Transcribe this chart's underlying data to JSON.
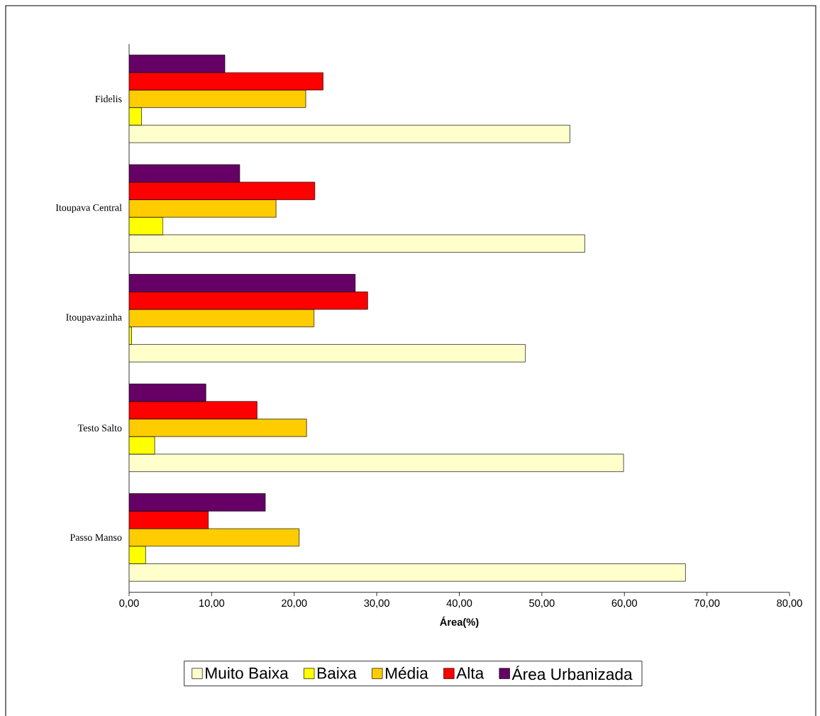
{
  "chart_data": {
    "type": "bar",
    "orientation": "horizontal",
    "categories": [
      "Fidelis",
      "Itoupava Central",
      "Itoupavazinha",
      "Testo Salto",
      "Passo Manso"
    ],
    "series": [
      {
        "name": "Muito Baixa",
        "color": "#ffffcc",
        "values": [
          53.4,
          55.2,
          48.0,
          59.9,
          67.4
        ]
      },
      {
        "name": "Baixa",
        "color": "#ffff00",
        "values": [
          1.5,
          4.1,
          0.3,
          3.1,
          2.0
        ]
      },
      {
        "name": "Média",
        "color": "#ffcc00",
        "values": [
          21.4,
          17.8,
          22.4,
          21.5,
          20.6
        ]
      },
      {
        "name": "Alta",
        "color": "#ff0000",
        "values": [
          23.5,
          22.5,
          28.9,
          15.5,
          9.6
        ]
      },
      {
        "name": "Área Urbanizada",
        "color": "#660066",
        "values": [
          11.6,
          13.4,
          27.4,
          9.3,
          16.5
        ]
      }
    ],
    "xlabel": "Área(%)",
    "xlim": [
      0,
      80
    ],
    "xticks": [
      {
        "value": 0,
        "label": "0,00"
      },
      {
        "value": 10,
        "label": "10,00"
      },
      {
        "value": 20,
        "label": "20,00"
      },
      {
        "value": 30,
        "label": "30,00"
      },
      {
        "value": 40,
        "label": "40,00"
      },
      {
        "value": 50,
        "label": "50,00"
      },
      {
        "value": 60,
        "label": "60,00"
      },
      {
        "value": 70,
        "label": "70,00"
      },
      {
        "value": 80,
        "label": "80,00"
      }
    ],
    "legend": "bottom",
    "grid": false
  }
}
